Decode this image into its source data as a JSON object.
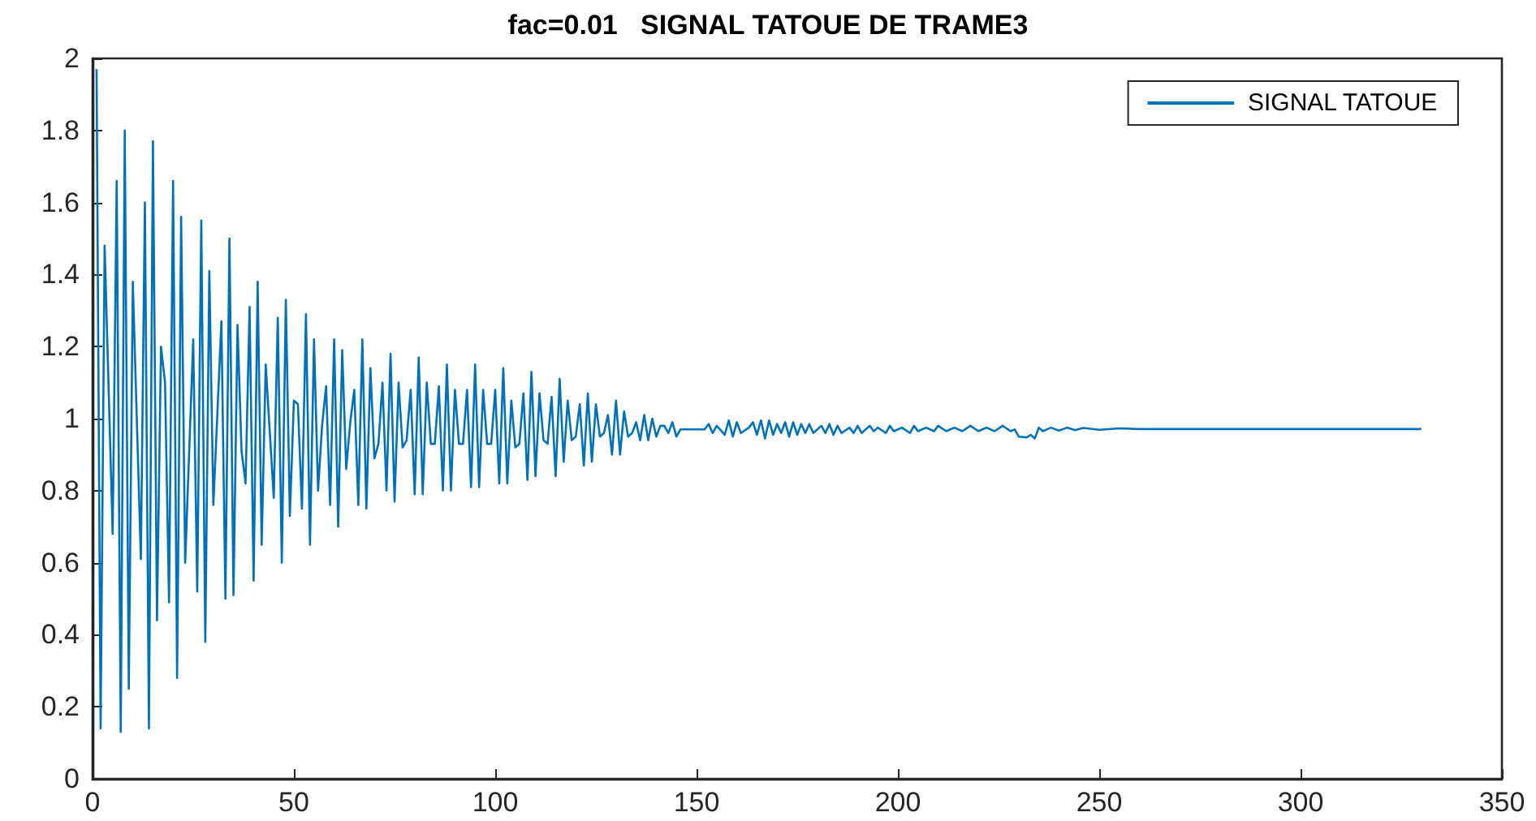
{
  "chart_data": {
    "type": "line",
    "title": "fac=0.01   SIGNAL TATOUE DE TRAME3",
    "legend": "top right",
    "grid": false,
    "marker": "none",
    "line_style": "solid",
    "xlim": [
      0,
      350
    ],
    "xticks": [
      0,
      50,
      100,
      150,
      200,
      250,
      300,
      350
    ],
    "ylim": [
      0,
      2
    ],
    "yticks": [
      0,
      0.2,
      0.4,
      0.6,
      0.8,
      1,
      1.2,
      1.4,
      1.6,
      1.8,
      2
    ],
    "series": [
      {
        "name": "SIGNAL TATOUE",
        "color": "#0072bd",
        "x": [
          1,
          2,
          3,
          5,
          6,
          7,
          8,
          9,
          10,
          12,
          13,
          14,
          15,
          16,
          17,
          18,
          19,
          20,
          21,
          22,
          23,
          25,
          26,
          27,
          28,
          29,
          30,
          32,
          33,
          34,
          35,
          36,
          37,
          38,
          39,
          40,
          41,
          42,
          43,
          45,
          46,
          47,
          48,
          49,
          50,
          51,
          52,
          53,
          54,
          55,
          56,
          57,
          58,
          59,
          60,
          61,
          62,
          63,
          64,
          65,
          66,
          67,
          68,
          69,
          70,
          71,
          72,
          73,
          74,
          75,
          76,
          77,
          78,
          79,
          80,
          81,
          82,
          83,
          84,
          85,
          86,
          87,
          88,
          89,
          90,
          91,
          92,
          93,
          94,
          95,
          96,
          97,
          98,
          99,
          100,
          101,
          102,
          103,
          104,
          105,
          106,
          107,
          108,
          109,
          110,
          111,
          112,
          113,
          114,
          115,
          116,
          117,
          118,
          119,
          120,
          121,
          122,
          123,
          124,
          125,
          126,
          127,
          128,
          129,
          130,
          131,
          132,
          133,
          134,
          135,
          136,
          137,
          138,
          139,
          140,
          141,
          142,
          143,
          144,
          145,
          146,
          150,
          152,
          153,
          154,
          155,
          157,
          158,
          159,
          160,
          161,
          163,
          164,
          165,
          166,
          167,
          168,
          169,
          170,
          171,
          172,
          173,
          174,
          175,
          176,
          177,
          178,
          179,
          181,
          182,
          183,
          184,
          185,
          186,
          188,
          189,
          190,
          191,
          193,
          194,
          195,
          197,
          198,
          199,
          201,
          203,
          204,
          205,
          207,
          209,
          210,
          212,
          214,
          216,
          218,
          220,
          222,
          224,
          226,
          228,
          229,
          230,
          232,
          233,
          234,
          235,
          236,
          238,
          240,
          242,
          244,
          246,
          250,
          255,
          260,
          330
        ],
        "values": [
          1.97,
          0.14,
          1.48,
          0.68,
          1.66,
          0.13,
          1.8,
          0.25,
          1.38,
          0.61,
          1.6,
          0.14,
          1.77,
          0.44,
          1.2,
          1.1,
          0.49,
          1.66,
          0.28,
          1.56,
          0.6,
          1.22,
          0.52,
          1.55,
          0.38,
          1.41,
          0.76,
          1.27,
          0.5,
          1.5,
          0.51,
          1.26,
          0.91,
          0.82,
          1.31,
          0.55,
          1.38,
          0.65,
          1.15,
          0.78,
          1.28,
          0.6,
          1.33,
          0.73,
          1.05,
          1.04,
          0.75,
          1.29,
          0.65,
          1.22,
          0.8,
          0.98,
          1.09,
          0.76,
          1.22,
          0.7,
          1.19,
          0.86,
          0.99,
          1.08,
          0.76,
          1.22,
          0.75,
          1.14,
          0.89,
          0.93,
          1.1,
          0.8,
          1.18,
          0.77,
          1.1,
          0.92,
          0.94,
          1.08,
          0.79,
          1.17,
          0.79,
          1.1,
          0.93,
          0.93,
          1.09,
          0.8,
          1.15,
          0.8,
          1.08,
          0.93,
          0.93,
          1.08,
          0.81,
          1.15,
          0.81,
          1.08,
          0.93,
          0.93,
          1.08,
          0.82,
          1.14,
          0.82,
          1.05,
          0.92,
          0.93,
          1.07,
          0.83,
          1.13,
          0.84,
          1.07,
          0.94,
          0.93,
          1.06,
          0.84,
          1.11,
          0.88,
          1.05,
          0.94,
          0.95,
          1.04,
          0.87,
          1.07,
          0.88,
          1.04,
          0.95,
          0.96,
          1.01,
          0.9,
          1.05,
          0.9,
          1.02,
          0.95,
          0.96,
          0.99,
          0.94,
          1.01,
          0.94,
          1,
          0.95,
          0.98,
          0.98,
          0.96,
          0.99,
          0.95,
          0.97,
          0.97,
          0.97,
          0.985,
          0.96,
          0.98,
          0.955,
          0.995,
          0.95,
          0.99,
          0.96,
          0.975,
          0.99,
          0.955,
          0.995,
          0.945,
          0.995,
          0.955,
          0.985,
          0.96,
          0.99,
          0.95,
          0.99,
          0.955,
          0.985,
          0.96,
          0.985,
          0.96,
          0.98,
          0.96,
          0.985,
          0.955,
          0.98,
          0.96,
          0.975,
          0.96,
          0.98,
          0.96,
          0.98,
          0.965,
          0.975,
          0.96,
          0.98,
          0.965,
          0.975,
          0.96,
          0.98,
          0.965,
          0.975,
          0.965,
          0.98,
          0.965,
          0.975,
          0.965,
          0.98,
          0.965,
          0.975,
          0.965,
          0.98,
          0.965,
          0.97,
          0.95,
          0.948,
          0.955,
          0.945,
          0.975,
          0.965,
          0.975,
          0.967,
          0.975,
          0.968,
          0.974,
          0.969,
          0.973,
          0.971,
          0.971
        ]
      }
    ]
  }
}
